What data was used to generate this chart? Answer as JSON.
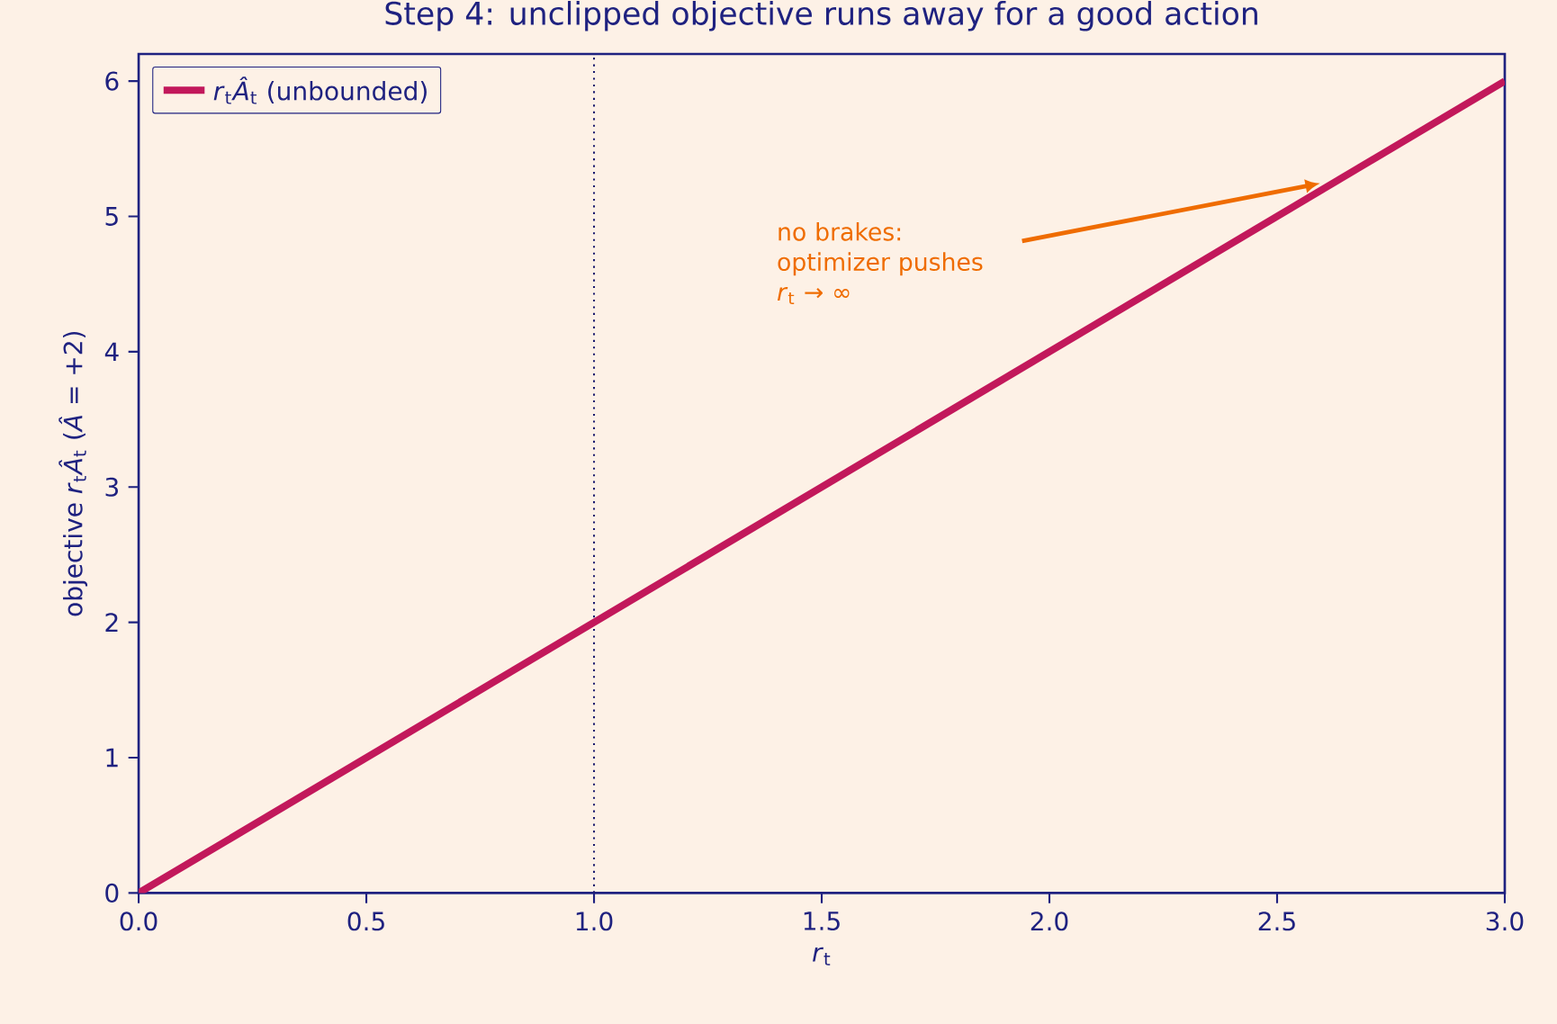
{
  "chart_data": {
    "type": "line",
    "title": "Step 4: unclipped objective runs away for a good action",
    "xlabel": "*r*$_{t}$",
    "ylabel": "objective  *r*$_{t}$*Â*$_{t}$   (*Â* = +2)",
    "x": [
      0,
      3
    ],
    "series": [
      {
        "name": "*r*$_{t}$*Â*$_{t}$  (unbounded)",
        "color": "#c2185b",
        "values": [
          0,
          6
        ]
      }
    ],
    "xlim": [
      0,
      3
    ],
    "ylim": [
      0,
      6.2
    ],
    "xticks": [
      {
        "value": 0,
        "label": "0.0"
      },
      0.5,
      {
        "value": 1,
        "label": "1.0"
      },
      1.5,
      {
        "value": 2,
        "label": "2.0"
      },
      2.5,
      {
        "value": 3,
        "label": "3.0"
      }
    ],
    "yticks": [
      0,
      1,
      2,
      3,
      4,
      5,
      6
    ],
    "ref_lines": [
      {
        "axis": "x",
        "value": 1,
        "color": "#1a1a6e",
        "line_style": "dotted"
      }
    ],
    "annotations": [
      "no brakes: optimizer pushes *r*$_{t}$ → ∞"
    ],
    "legend": "top left",
    "grid": false,
    "marker": "none",
    "line_style": "solid"
  }
}
